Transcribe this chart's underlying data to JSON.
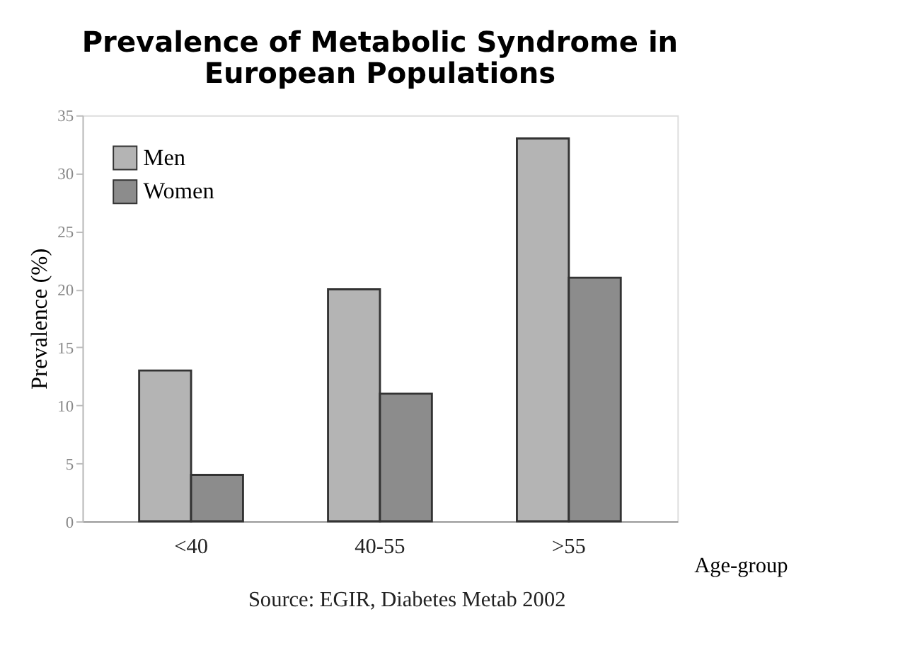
{
  "chart_data": {
    "type": "bar",
    "title": [
      "Prevalence of Metabolic Syndrome in",
      "European Populations"
    ],
    "xlabel": "Age-group",
    "ylabel": "Prevalence (%)",
    "categories": [
      "<40",
      "40-55",
      ">55"
    ],
    "series": [
      {
        "name": "Men",
        "color": "#b4b4b4",
        "values": [
          13,
          20,
          33
        ]
      },
      {
        "name": "Women",
        "color": "#8c8c8c",
        "values": [
          4,
          11,
          21
        ]
      }
    ],
    "ylim": [
      0,
      35
    ],
    "yticks": [
      0,
      5,
      10,
      15,
      20,
      25,
      30,
      35
    ],
    "grid": false,
    "legend": "top left",
    "annotations": [
      "Source: EGIR, Diabetes Metab 2002"
    ]
  }
}
